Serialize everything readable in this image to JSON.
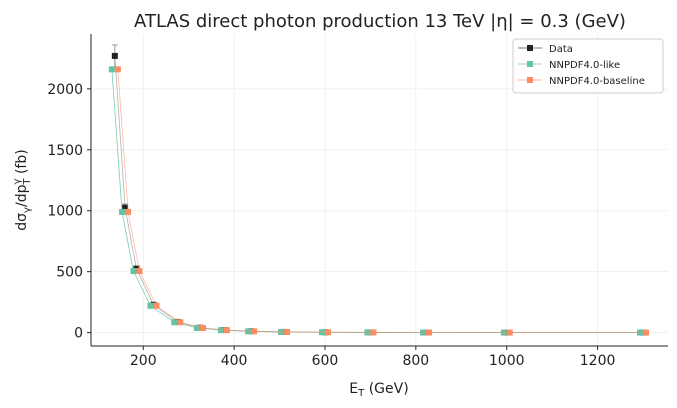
{
  "chart_data": {
    "type": "line",
    "title": "ATLAS direct photon production 13 TeV |η| = 0.3 (GeV)",
    "xlabel": {
      "main": "E",
      "sub": "T",
      "rest": " (GeV)"
    },
    "ylabel": {
      "a": "dσ",
      "a_sub": "γ",
      "b": "/dp",
      "b_sup": "γ",
      "b_sub": "T",
      "rest": " (fb)"
    },
    "xlim": [
      85,
      1355
    ],
    "ylim": [
      -110,
      2450
    ],
    "xticks": [
      200,
      400,
      600,
      800,
      1000,
      1200
    ],
    "yticks": [
      0,
      500,
      1000,
      1500,
      2000
    ],
    "grid": true,
    "legend_position": "top-right",
    "x": [
      137.5,
      160,
      185,
      222.5,
      275,
      325,
      377.5,
      437.5,
      510,
      600,
      700,
      822.5,
      1000,
      1300
    ],
    "series": [
      {
        "name": "Data",
        "color": "#222222",
        "marker": "square",
        "values": [
          2270,
          1025,
          525,
          228,
          88,
          40,
          21,
          11,
          5.5,
          2.7,
          1.3,
          0.6,
          0.25,
          0.06
        ],
        "errors": [
          90,
          30,
          15,
          7,
          3,
          1.5,
          0.8,
          0.5,
          0.3,
          0.2,
          0.1,
          0.05,
          0.03,
          0.01
        ]
      },
      {
        "name": "NNPDF4.0-like",
        "color": "#66c2a5",
        "marker": "square",
        "values": [
          2160,
          990,
          505,
          220,
          85,
          38,
          20,
          10.5,
          5.2,
          2.6,
          1.25,
          0.58,
          0.24,
          0.055
        ]
      },
      {
        "name": "NNPDF4.0-baseline",
        "color": "#fc8d62",
        "marker": "square",
        "values": [
          2160,
          990,
          505,
          220,
          85,
          38,
          20,
          10.5,
          5.2,
          2.6,
          1.25,
          0.58,
          0.24,
          0.055
        ]
      }
    ]
  }
}
